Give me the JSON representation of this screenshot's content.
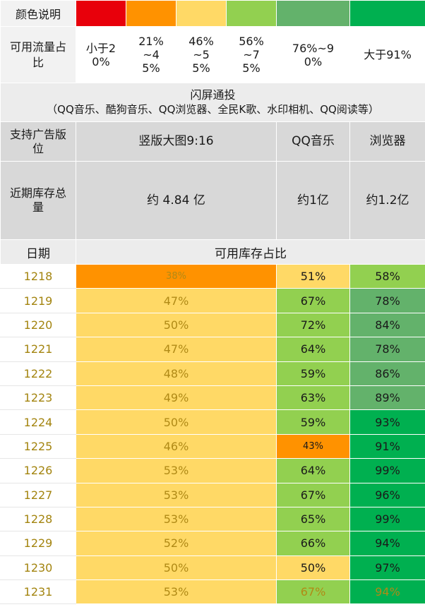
{
  "legend": {
    "color_label": "颜色说明",
    "colors": [
      "#e8000b",
      "#ff9200",
      "#ffd966",
      "#92d050",
      "#63b26b",
      "#00b050"
    ],
    "flow_label": "可用流量占比",
    "ranges": [
      "小于20%",
      "21%~45%",
      "46%~55%",
      "56%~75%",
      "76%~90%",
      "大于91%"
    ]
  },
  "banner": {
    "title": "闪屏通投",
    "subtitle": "（QQ音乐、酷狗音乐、QQ浏览器、全民K歌、水印相机、QQ阅读等）"
  },
  "header": {
    "position_label": "支持广告版位",
    "columns": [
      "竖版大图9:16",
      "QQ音乐",
      "浏览器"
    ],
    "inventory_label": "近期库存总量",
    "inventory": [
      "约 4.84 亿",
      "约1亿",
      "约1.2亿"
    ]
  },
  "subheader": {
    "date_label": "日期",
    "ratio_label": "可用库存占比"
  },
  "rows": [
    {
      "date": "1218",
      "cells": [
        {
          "text": "38%",
          "bg": "#ff9200",
          "style": "gold small"
        },
        {
          "text": "51%",
          "bg": "#ffd966",
          "style": ""
        },
        {
          "text": "58%",
          "bg": "#92d050",
          "style": ""
        }
      ]
    },
    {
      "date": "1219",
      "cells": [
        {
          "text": "47%",
          "bg": "#ffd966",
          "style": "gold"
        },
        {
          "text": "67%",
          "bg": "#92d050",
          "style": ""
        },
        {
          "text": "78%",
          "bg": "#63b26b",
          "style": ""
        }
      ]
    },
    {
      "date": "1220",
      "cells": [
        {
          "text": "50%",
          "bg": "#ffd966",
          "style": "gold"
        },
        {
          "text": "72%",
          "bg": "#92d050",
          "style": ""
        },
        {
          "text": "84%",
          "bg": "#63b26b",
          "style": ""
        }
      ]
    },
    {
      "date": "1221",
      "cells": [
        {
          "text": "47%",
          "bg": "#ffd966",
          "style": "gold"
        },
        {
          "text": "64%",
          "bg": "#92d050",
          "style": ""
        },
        {
          "text": "78%",
          "bg": "#63b26b",
          "style": ""
        }
      ]
    },
    {
      "date": "1222",
      "cells": [
        {
          "text": "48%",
          "bg": "#ffd966",
          "style": "gold"
        },
        {
          "text": "59%",
          "bg": "#92d050",
          "style": ""
        },
        {
          "text": "86%",
          "bg": "#63b26b",
          "style": ""
        }
      ]
    },
    {
      "date": "1223",
      "cells": [
        {
          "text": "49%",
          "bg": "#ffd966",
          "style": "gold"
        },
        {
          "text": "63%",
          "bg": "#92d050",
          "style": ""
        },
        {
          "text": "89%",
          "bg": "#63b26b",
          "style": ""
        }
      ]
    },
    {
      "date": "1224",
      "cells": [
        {
          "text": "50%",
          "bg": "#ffd966",
          "style": "gold"
        },
        {
          "text": "59%",
          "bg": "#92d050",
          "style": ""
        },
        {
          "text": "93%",
          "bg": "#00b050",
          "style": ""
        }
      ]
    },
    {
      "date": "1225",
      "cells": [
        {
          "text": "46%",
          "bg": "#ffd966",
          "style": "gold"
        },
        {
          "text": "43%",
          "bg": "#ff9200",
          "style": "small"
        },
        {
          "text": "91%",
          "bg": "#00b050",
          "style": ""
        }
      ]
    },
    {
      "date": "1226",
      "cells": [
        {
          "text": "53%",
          "bg": "#ffd966",
          "style": "gold"
        },
        {
          "text": "64%",
          "bg": "#92d050",
          "style": ""
        },
        {
          "text": "99%",
          "bg": "#00b050",
          "style": ""
        }
      ]
    },
    {
      "date": "1227",
      "cells": [
        {
          "text": "53%",
          "bg": "#ffd966",
          "style": "gold"
        },
        {
          "text": "67%",
          "bg": "#92d050",
          "style": ""
        },
        {
          "text": "96%",
          "bg": "#00b050",
          "style": ""
        }
      ]
    },
    {
      "date": "1228",
      "cells": [
        {
          "text": "53%",
          "bg": "#ffd966",
          "style": "gold"
        },
        {
          "text": "65%",
          "bg": "#92d050",
          "style": ""
        },
        {
          "text": "99%",
          "bg": "#00b050",
          "style": ""
        }
      ]
    },
    {
      "date": "1229",
      "cells": [
        {
          "text": "52%",
          "bg": "#ffd966",
          "style": "gold"
        },
        {
          "text": "66%",
          "bg": "#92d050",
          "style": ""
        },
        {
          "text": "94%",
          "bg": "#00b050",
          "style": ""
        }
      ]
    },
    {
      "date": "1230",
      "cells": [
        {
          "text": "50%",
          "bg": "#ffd966",
          "style": "gold"
        },
        {
          "text": "50%",
          "bg": "#ffd966",
          "style": ""
        },
        {
          "text": "97%",
          "bg": "#00b050",
          "style": ""
        }
      ]
    },
    {
      "date": "1231",
      "cells": [
        {
          "text": "53%",
          "bg": "#ffd966",
          "style": "gold"
        },
        {
          "text": "67%",
          "bg": "#92d050",
          "style": "gold"
        },
        {
          "text": "94%",
          "bg": "#00b050",
          "style": "gold"
        }
      ]
    }
  ]
}
